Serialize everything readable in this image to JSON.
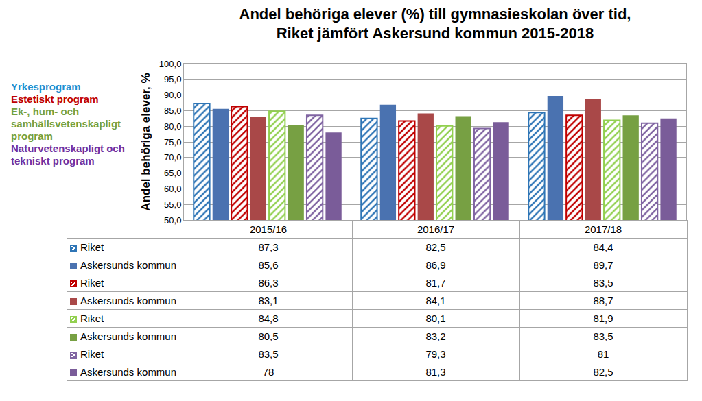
{
  "chart_data": {
    "type": "bar",
    "title": "Andel behöriga elever (%) till gymnasieskolan över tid,\nRiket jämfört Askersund kommun 2015-2018",
    "y_label": "Andel behöriga elever, %",
    "categories": [
      "2015/16",
      "2016/17",
      "2017/18"
    ],
    "ylim": [
      50,
      100
    ],
    "yticks": [
      {
        "value": 50,
        "label": "50,0"
      },
      {
        "value": 55,
        "label": "55,0"
      },
      {
        "value": 60,
        "label": "60,0"
      },
      {
        "value": 65,
        "label": "65,0"
      },
      {
        "value": 70,
        "label": "70,0"
      },
      {
        "value": 75,
        "label": "75,0"
      },
      {
        "value": 80,
        "label": "80,0"
      },
      {
        "value": 85,
        "label": "85,0"
      },
      {
        "value": 90,
        "label": "90,0"
      },
      {
        "value": 95,
        "label": "95,0"
      },
      {
        "value": 100,
        "label": "100,0"
      }
    ],
    "grid": true,
    "annotations": [
      {
        "text": "Yrkesprogram",
        "color": "#1f8fd0"
      },
      {
        "text": "Estetiskt program",
        "color": "#c00000"
      },
      {
        "text": "Ek-, hum- och samhällsvetenskapligt program",
        "color": "#76a03c"
      },
      {
        "text": "Naturvetenskapligt och tekniskt program",
        "color": "#7030a0"
      }
    ],
    "series": [
      {
        "name": "Riket",
        "color": "#2e75b6",
        "marker": "hatched",
        "values": [
          87.3,
          82.5,
          84.4
        ],
        "value_labels": [
          "87,3",
          "82,5",
          "84,4"
        ]
      },
      {
        "name": "Askersunds kommun",
        "color": "#4a72b0",
        "marker": "solid",
        "values": [
          85.6,
          86.9,
          89.7
        ],
        "value_labels": [
          "85,6",
          "86,9",
          "89,7"
        ]
      },
      {
        "name": "Riket",
        "color": "#c00000",
        "marker": "hatched",
        "values": [
          86.3,
          81.7,
          83.5
        ],
        "value_labels": [
          "86,3",
          "81,7",
          "83,5"
        ]
      },
      {
        "name": "Askersunds kommun",
        "color": "#a94848",
        "marker": "solid",
        "values": [
          83.1,
          84.1,
          88.7
        ],
        "value_labels": [
          "83,1",
          "84,1",
          "88,7"
        ]
      },
      {
        "name": "Riket",
        "color": "#92d050",
        "marker": "hatched",
        "values": [
          84.8,
          80.1,
          81.9
        ],
        "value_labels": [
          "84,8",
          "80,1",
          "81,9"
        ]
      },
      {
        "name": "Askersunds kommun",
        "color": "#77a043",
        "marker": "solid",
        "values": [
          80.5,
          83.2,
          83.5
        ],
        "value_labels": [
          "80,5",
          "83,2",
          "83,5"
        ]
      },
      {
        "name": "Riket",
        "color": "#8064a2",
        "marker": "hatched",
        "values": [
          83.5,
          79.3,
          81
        ],
        "value_labels": [
          "83,5",
          "79,3",
          "81"
        ]
      },
      {
        "name": "Askersunds kommun",
        "color": "#7a5c99",
        "marker": "solid",
        "values": [
          78,
          81.3,
          82.5
        ],
        "value_labels": [
          "78",
          "81,3",
          "82,5"
        ]
      }
    ]
  }
}
